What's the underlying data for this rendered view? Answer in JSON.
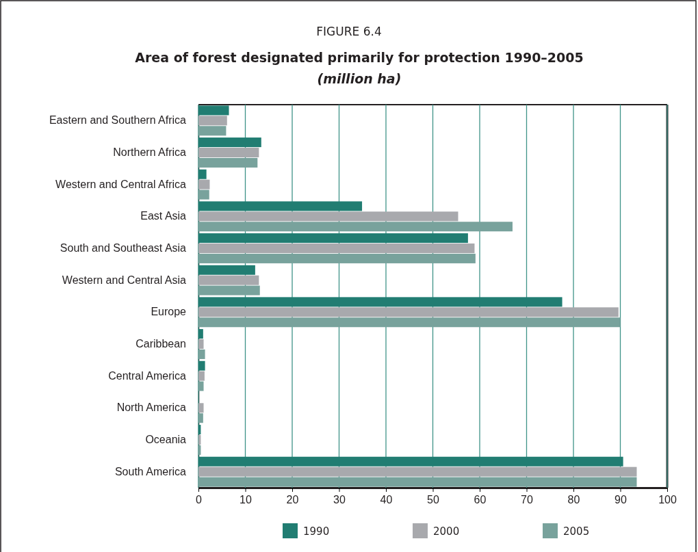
{
  "chart_data": {
    "type": "bar",
    "orientation": "horizontal",
    "title": "Area of forest designated primarily for protection 1990–2005",
    "subtitle": "(million ha)",
    "annotations": [
      "FIGURE 6.4"
    ],
    "categories": [
      "Eastern and Southern Africa",
      "Northern Africa",
      "Western and Central Africa",
      "East Asia",
      "South and Southeast Asia",
      "Western and Central Asia",
      "Europe",
      "Caribbean",
      "Central America",
      "North America",
      "Oceania",
      "South America"
    ],
    "series": [
      {
        "name": "1990",
        "color": "#217d72",
        "values": [
          6.5,
          13.4,
          1.7,
          34.9,
          57.5,
          12.1,
          77.6,
          1.0,
          1.4,
          0,
          0.5,
          90.6
        ]
      },
      {
        "name": "2000",
        "color": "#a8a9ad",
        "values": [
          6.1,
          12.9,
          2.4,
          55.4,
          58.9,
          12.9,
          89.6,
          1.1,
          1.3,
          1.1,
          0.5,
          93.5
        ]
      },
      {
        "name": "2005",
        "color": "#78a29c",
        "values": [
          5.9,
          12.6,
          2.3,
          67.0,
          59.1,
          13.1,
          90.0,
          1.4,
          1.1,
          1.0,
          0.5,
          93.5
        ]
      }
    ],
    "xlim": [
      0,
      100
    ],
    "xticks": [
      0,
      10,
      20,
      30,
      40,
      50,
      60,
      70,
      80,
      90,
      100
    ],
    "grid": "x",
    "legend": "bottom"
  }
}
